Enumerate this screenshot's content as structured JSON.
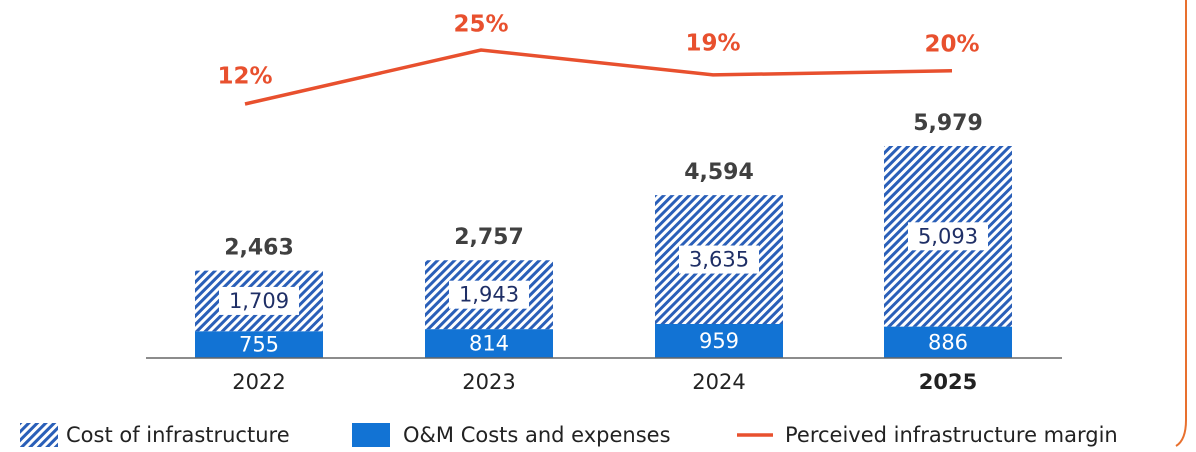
{
  "chart_data": {
    "type": "bar",
    "categories": [
      "2022",
      "2023",
      "2024",
      "2025"
    ],
    "series": [
      {
        "name": "O&M Costs and expenses",
        "color": "#1273d4",
        "values": [
          755,
          814,
          959,
          886
        ]
      },
      {
        "name": "Cost of infrastructure",
        "color": "#2a5fb8",
        "pattern": "hatch",
        "values": [
          1709,
          1943,
          3635,
          5093
        ],
        "value_labels": [
          "1,709",
          "1,943",
          "3,635",
          "5,093"
        ]
      }
    ],
    "totals": [
      2463,
      2757,
      4594,
      5979
    ],
    "total_labels": [
      "2,463",
      "2,757",
      "4,594",
      "5,979"
    ],
    "line": {
      "name": "Perceived infrastructure margin",
      "color": "#e8502e",
      "values": [
        12,
        25,
        19,
        20
      ],
      "value_labels": [
        "12%",
        "25%",
        "19%",
        "20%"
      ]
    }
  }
}
